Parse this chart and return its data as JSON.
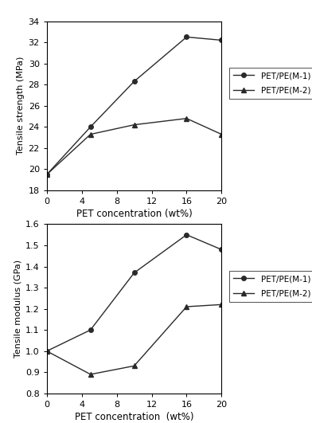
{
  "x": [
    0,
    5,
    10,
    16,
    20
  ],
  "top": {
    "m1_y": [
      19.5,
      24.0,
      28.3,
      32.5,
      32.2
    ],
    "m2_y": [
      19.5,
      23.3,
      24.2,
      24.8,
      23.3
    ],
    "ylabel": "Tensile strength (MPa)",
    "xlabel": "PET concentration (wt%)",
    "ylim": [
      18,
      34
    ],
    "yticks": [
      18,
      20,
      22,
      24,
      26,
      28,
      30,
      32,
      34
    ],
    "xticks": [
      0,
      4,
      8,
      12,
      16,
      20
    ],
    "xlim": [
      0,
      20
    ]
  },
  "bottom": {
    "m1_y": [
      1.0,
      1.1,
      1.37,
      1.55,
      1.48
    ],
    "m2_y": [
      1.0,
      0.89,
      0.93,
      1.21,
      1.22
    ],
    "ylabel": "Tensile modulus (GPa)",
    "xlabel": "PET concentration  (wt%)",
    "ylim": [
      0.8,
      1.6
    ],
    "yticks": [
      0.8,
      0.9,
      1.0,
      1.1,
      1.2,
      1.3,
      1.4,
      1.5,
      1.6
    ],
    "xticks": [
      0,
      4,
      8,
      12,
      16,
      20
    ],
    "xlim": [
      0,
      20
    ]
  },
  "legend_m1": "PET/PE(M-1)",
  "legend_m2": "PET/PE(M-2)",
  "color": "#2a2a2a",
  "background": "#ffffff",
  "fig_width": 3.92,
  "fig_height": 5.31
}
